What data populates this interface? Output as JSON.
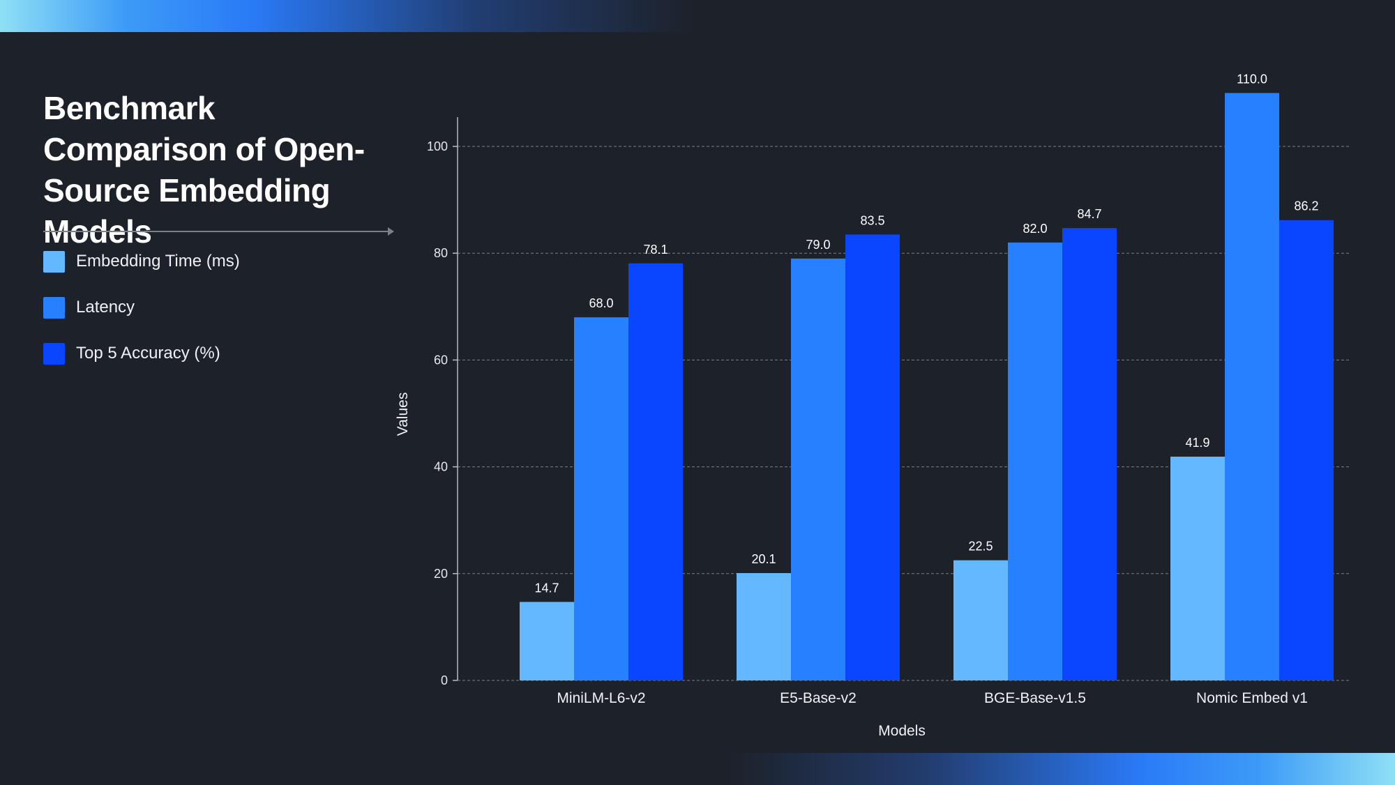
{
  "title": "Benchmark Comparison of Open-Source Embedding Models",
  "colors": {
    "background": "#1d2129",
    "series": [
      "#63b8ff",
      "#2680ff",
      "#0a45ff"
    ],
    "grid": "#7c8088",
    "text": "#ffffff"
  },
  "chart_data": {
    "type": "bar",
    "title": "Benchmark Comparison of Open-Source Embedding Models",
    "xlabel": "Models",
    "ylabel": "Values",
    "categories": [
      "MiniLM-L6-v2",
      "E5-Base-v2",
      "BGE-Base-v1.5",
      "Nomic Embed v1"
    ],
    "series": [
      {
        "name": "Embedding Time (ms)",
        "values": [
          14.7,
          20.1,
          22.5,
          41.9
        ],
        "labels": [
          "14.7",
          "20.1",
          "22.5",
          "41.9"
        ],
        "color": "#63b8ff"
      },
      {
        "name": "Latency",
        "values": [
          68.0,
          79.0,
          82.0,
          110.0
        ],
        "labels": [
          "68.0",
          "79.0",
          "82.0",
          "110.0"
        ],
        "color": "#2680ff"
      },
      {
        "name": "Top 5 Accuracy (%)",
        "values": [
          78.1,
          83.5,
          84.7,
          86.2
        ],
        "labels": [
          "78.1",
          "83.5",
          "84.7",
          "86.2"
        ],
        "color": "#0a45ff"
      }
    ],
    "yticks": [
      0,
      20,
      40,
      60,
      80,
      100
    ],
    "ylim": [
      0,
      105
    ],
    "grid": true,
    "legend_position": "left"
  }
}
